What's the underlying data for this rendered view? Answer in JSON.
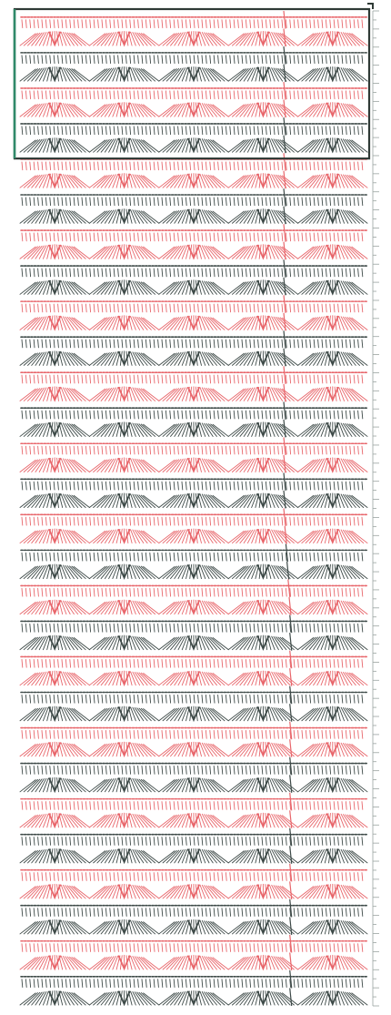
{
  "diagram": {
    "type": "crochet-stitch-chart",
    "colors": {
      "red": "#e8666b",
      "dark": "#3e4a48",
      "frame": "#2f3a36",
      "frame_left": "#2f8a6a",
      "ruler": "#9aa3a0",
      "background": "#ffffff"
    },
    "row_colors": [
      "red",
      "red",
      "dark",
      "dark",
      "red",
      "red",
      "dark",
      "dark",
      "red",
      "red",
      "dark",
      "dark",
      "red",
      "red",
      "dark",
      "dark",
      "red",
      "red",
      "dark",
      "dark",
      "red",
      "red",
      "dark",
      "dark",
      "red",
      "red",
      "dark",
      "dark",
      "red",
      "red",
      "dark",
      "dark",
      "red",
      "red",
      "dark",
      "dark",
      "red",
      "red",
      "dark",
      "dark",
      "red",
      "red",
      "dark",
      "dark",
      "red",
      "red",
      "dark",
      "dark",
      "red",
      "red",
      "dark",
      "dark",
      "red",
      "red",
      "dark",
      "dark"
    ],
    "repeat_count": 5,
    "highlighted_rows": 8,
    "symbols": [
      "chain",
      "double-crochet",
      "v-stitch"
    ],
    "ruler_marks": 110
  }
}
